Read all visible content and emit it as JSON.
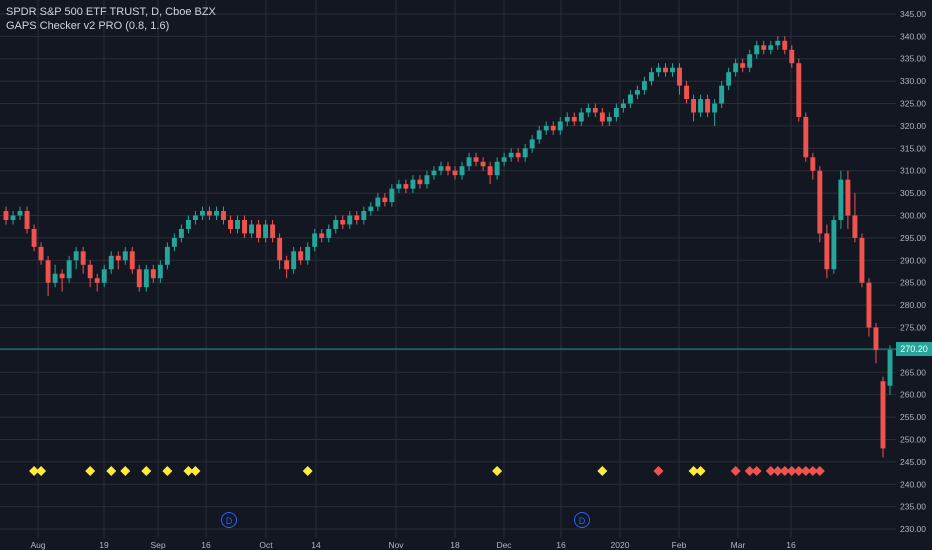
{
  "header": {
    "symbol_line": "SPDR S&P 500 ETF TRUST, D, Cboe BZX",
    "indicator_line": "GAPS Checker v2 PRO (0.8, 1.6)"
  },
  "current_price_label": "270.20",
  "event_markers": [
    "D",
    "D"
  ],
  "colors": {
    "background": "#131722",
    "grid": "#2a2e39",
    "up": "#26a69a",
    "down": "#ef5350",
    "gap_small": "#ffeb3b",
    "gap_large": "#ef5350",
    "event": "#2962ff"
  },
  "chart_data": {
    "type": "candlestick",
    "ylim": [
      228,
      347
    ],
    "y_ticks": [
      "345.00",
      "340.00",
      "335.00",
      "330.00",
      "325.00",
      "320.00",
      "315.00",
      "310.00",
      "305.00",
      "300.00",
      "295.00",
      "290.00",
      "285.00",
      "280.00",
      "275.00",
      "270.00",
      "265.00",
      "260.00",
      "255.00",
      "250.00",
      "245.00",
      "240.00",
      "235.00",
      "230.00"
    ],
    "x_ticks": [
      "Aug",
      "19",
      "Sep",
      "16",
      "Oct",
      "14",
      "Nov",
      "18",
      "Dec",
      "16",
      "2020",
      "Feb",
      "Mar",
      "16"
    ],
    "current_price": 270.2,
    "candles": [
      [
        301,
        299,
        302,
        298
      ],
      [
        299,
        300,
        301,
        298
      ],
      [
        300,
        301,
        302,
        299
      ],
      [
        301,
        297,
        302,
        296
      ],
      [
        297,
        293,
        298,
        292
      ],
      [
        293,
        290,
        294,
        289
      ],
      [
        290,
        285,
        291,
        282
      ],
      [
        285,
        287,
        289,
        284
      ],
      [
        287,
        286,
        288,
        283
      ],
      [
        286,
        290,
        291,
        285
      ],
      [
        290,
        292,
        293,
        288
      ],
      [
        292,
        289,
        293,
        287
      ],
      [
        289,
        286,
        290,
        284
      ],
      [
        286,
        285,
        287,
        283
      ],
      [
        285,
        288,
        289,
        284
      ],
      [
        288,
        291,
        292,
        287
      ],
      [
        291,
        290,
        292,
        288
      ],
      [
        290,
        292,
        293,
        289
      ],
      [
        292,
        288,
        293,
        287
      ],
      [
        288,
        284,
        289,
        283
      ],
      [
        284,
        288,
        289,
        283
      ],
      [
        288,
        286,
        289,
        285
      ],
      [
        286,
        289,
        290,
        285
      ],
      [
        289,
        293,
        294,
        288
      ],
      [
        293,
        295,
        296,
        292
      ],
      [
        295,
        297,
        298,
        294
      ],
      [
        297,
        299,
        300,
        296
      ],
      [
        299,
        300,
        301,
        298
      ],
      [
        300,
        301,
        302,
        299
      ],
      [
        301,
        300,
        302,
        299
      ],
      [
        300,
        301,
        302,
        299
      ],
      [
        301,
        299,
        302,
        298
      ],
      [
        299,
        297,
        300,
        296
      ],
      [
        297,
        299,
        300,
        296
      ],
      [
        299,
        296,
        300,
        295
      ],
      [
        296,
        298,
        299,
        295
      ],
      [
        298,
        295,
        299,
        294
      ],
      [
        295,
        298,
        299,
        294
      ],
      [
        298,
        295,
        299,
        294
      ],
      [
        295,
        290,
        296,
        288
      ],
      [
        290,
        288,
        291,
        286
      ],
      [
        288,
        292,
        293,
        287
      ],
      [
        292,
        290,
        293,
        289
      ],
      [
        290,
        293,
        294,
        289
      ],
      [
        293,
        296,
        297,
        292
      ],
      [
        296,
        295,
        297,
        294
      ],
      [
        295,
        297,
        298,
        294
      ],
      [
        297,
        299,
        300,
        296
      ],
      [
        299,
        298,
        300,
        297
      ],
      [
        298,
        300,
        301,
        297
      ],
      [
        300,
        299,
        301,
        298
      ],
      [
        299,
        301,
        302,
        298
      ],
      [
        301,
        302,
        303,
        300
      ],
      [
        302,
        304,
        305,
        301
      ],
      [
        304,
        303,
        305,
        302
      ],
      [
        303,
        306,
        307,
        302
      ],
      [
        306,
        307,
        308,
        305
      ],
      [
        307,
        306,
        308,
        305
      ],
      [
        306,
        308,
        309,
        305
      ],
      [
        308,
        307,
        309,
        306
      ],
      [
        307,
        309,
        310,
        306
      ],
      [
        309,
        310,
        311,
        308
      ],
      [
        310,
        311,
        312,
        309
      ],
      [
        311,
        310,
        312,
        309
      ],
      [
        310,
        309,
        311,
        308
      ],
      [
        309,
        311,
        312,
        308
      ],
      [
        311,
        313,
        314,
        310
      ],
      [
        313,
        312,
        314,
        311
      ],
      [
        312,
        311,
        313,
        310
      ],
      [
        311,
        309,
        312,
        307
      ],
      [
        309,
        312,
        313,
        308
      ],
      [
        312,
        313,
        314,
        311
      ],
      [
        313,
        314,
        315,
        312
      ],
      [
        314,
        313,
        315,
        312
      ],
      [
        313,
        315,
        316,
        312
      ],
      [
        315,
        317,
        318,
        314
      ],
      [
        317,
        319,
        320,
        316
      ],
      [
        319,
        320,
        321,
        318
      ],
      [
        320,
        319,
        321,
        318
      ],
      [
        319,
        321,
        322,
        318
      ],
      [
        321,
        322,
        323,
        320
      ],
      [
        322,
        321,
        323,
        320
      ],
      [
        321,
        323,
        324,
        320
      ],
      [
        323,
        324,
        325,
        322
      ],
      [
        324,
        323,
        325,
        322
      ],
      [
        323,
        321,
        324,
        320
      ],
      [
        321,
        322,
        323,
        320
      ],
      [
        322,
        324,
        325,
        321
      ],
      [
        324,
        325,
        326,
        323
      ],
      [
        325,
        327,
        328,
        324
      ],
      [
        327,
        328,
        329,
        326
      ],
      [
        328,
        330,
        331,
        327
      ],
      [
        330,
        332,
        333,
        329
      ],
      [
        332,
        333,
        334,
        331
      ],
      [
        333,
        332,
        334,
        331
      ],
      [
        332,
        333,
        334,
        331
      ],
      [
        333,
        329,
        334,
        327
      ],
      [
        329,
        326,
        330,
        325
      ],
      [
        326,
        323,
        327,
        321
      ],
      [
        323,
        326,
        327,
        322
      ],
      [
        326,
        323,
        327,
        322
      ],
      [
        323,
        325,
        326,
        320
      ],
      [
        325,
        329,
        330,
        324
      ],
      [
        329,
        332,
        333,
        328
      ],
      [
        332,
        334,
        335,
        331
      ],
      [
        334,
        333,
        335,
        332
      ],
      [
        333,
        336,
        337,
        332
      ],
      [
        336,
        338,
        339,
        335
      ],
      [
        338,
        337,
        339,
        336
      ],
      [
        337,
        338,
        339,
        336
      ],
      [
        338,
        339,
        340,
        337
      ],
      [
        339,
        337,
        340,
        336
      ],
      [
        337,
        334,
        338,
        333
      ],
      [
        334,
        322,
        335,
        321
      ],
      [
        322,
        313,
        323,
        312
      ],
      [
        313,
        310,
        314,
        308
      ],
      [
        310,
        296,
        311,
        294
      ],
      [
        296,
        288,
        298,
        286
      ],
      [
        288,
        299,
        300,
        287
      ],
      [
        299,
        308,
        310,
        297
      ],
      [
        308,
        300,
        310,
        297
      ],
      [
        300,
        295,
        305,
        294
      ],
      [
        295,
        285,
        296,
        284
      ],
      [
        285,
        275,
        286,
        273
      ],
      [
        275,
        270,
        276,
        267
      ],
      [
        263,
        248,
        264,
        246
      ],
      [
        262,
        270,
        271,
        260
      ]
    ],
    "gap_markers": [
      {
        "index": 4,
        "type": "small"
      },
      {
        "index": 5,
        "type": "small"
      },
      {
        "index": 12,
        "type": "small"
      },
      {
        "index": 15,
        "type": "small"
      },
      {
        "index": 17,
        "type": "small"
      },
      {
        "index": 20,
        "type": "small"
      },
      {
        "index": 23,
        "type": "small"
      },
      {
        "index": 26,
        "type": "small"
      },
      {
        "index": 27,
        "type": "small"
      },
      {
        "index": 43,
        "type": "small"
      },
      {
        "index": 70,
        "type": "small"
      },
      {
        "index": 85,
        "type": "small"
      },
      {
        "index": 93,
        "type": "large"
      },
      {
        "index": 98,
        "type": "small"
      },
      {
        "index": 99,
        "type": "small"
      },
      {
        "index": 104,
        "type": "large"
      },
      {
        "index": 106,
        "type": "large"
      },
      {
        "index": 107,
        "type": "large"
      },
      {
        "index": 109,
        "type": "large"
      },
      {
        "index": 110,
        "type": "large"
      },
      {
        "index": 111,
        "type": "large"
      },
      {
        "index": 112,
        "type": "large"
      },
      {
        "index": 113,
        "type": "large"
      },
      {
        "index": 114,
        "type": "large"
      },
      {
        "index": 115,
        "type": "large"
      },
      {
        "index": 116,
        "type": "large"
      }
    ]
  }
}
